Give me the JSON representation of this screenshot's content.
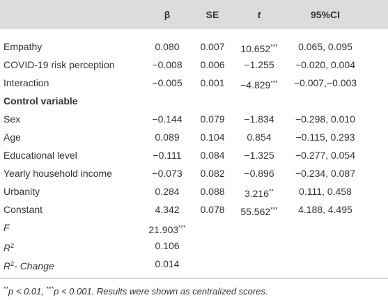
{
  "table": {
    "header": [
      "β",
      "SE",
      [
        {
          "t": "t",
          "i": true
        }
      ],
      "95%CI"
    ],
    "rows": [
      {
        "label": "Empathy",
        "cells": [
          "0.080",
          "0.007",
          [
            {
              "t": "10.652"
            },
            {
              "t": "***",
              "sup": true
            }
          ],
          "0.065, 0.095"
        ]
      },
      {
        "label": "COVID-19 risk perception",
        "cells": [
          "−0.008",
          "0.006",
          "−1.255",
          "−0.020, 0.004"
        ]
      },
      {
        "label": "Interaction",
        "cells": [
          "−0.005",
          "0.001",
          [
            {
              "t": "−4.829"
            },
            {
              "t": "***",
              "sup": true
            }
          ],
          "−0.007,−0.003"
        ]
      },
      {
        "label": "Control variable",
        "bold": true
      },
      {
        "label": "Sex",
        "cells": [
          "−0.144",
          "0.079",
          "−1.834",
          "−0.298, 0.010"
        ]
      },
      {
        "label": "Age",
        "cells": [
          "0.089",
          "0.104",
          "0.854",
          "−0.115, 0.293"
        ]
      },
      {
        "label": "Educational level",
        "cells": [
          "−0.111",
          "0.084",
          "−1.325",
          "−0.277, 0.054"
        ]
      },
      {
        "label": "Yearly household income",
        "cells": [
          "−0.073",
          "0.082",
          "−0.896",
          "−0.234, 0.087"
        ]
      },
      {
        "label": "Urbanity",
        "cells": [
          "0.284",
          "0.088",
          [
            {
              "t": "3.216"
            },
            {
              "t": "**",
              "sup": true
            }
          ],
          "0.111, 0.458"
        ]
      },
      {
        "label": "Constant",
        "cells": [
          "4.342",
          "0.078",
          [
            {
              "t": "55.562"
            },
            {
              "t": "***",
              "sup": true
            }
          ],
          "4.188, 4.495"
        ]
      },
      {
        "label": [
          {
            "t": "F",
            "i": true
          }
        ],
        "cells": [
          [
            {
              "t": "21.903"
            },
            {
              "t": "***",
              "sup": true
            }
          ]
        ]
      },
      {
        "label": [
          {
            "t": "R",
            "i": true
          },
          {
            "t": "2",
            "sup": true
          }
        ],
        "cells": [
          "0.106"
        ]
      },
      {
        "label": [
          {
            "t": "R",
            "i": true
          },
          {
            "t": "2",
            "sup": true
          },
          {
            "t": "- Change",
            "i": true
          }
        ],
        "cells": [
          "0.014"
        ]
      }
    ],
    "footnote": [
      {
        "t": "**",
        "sup": true
      },
      {
        "t": "p",
        "i": true
      },
      {
        "t": " < 0.01, ",
        "i": true
      },
      {
        "t": "***",
        "sup": true
      },
      {
        "t": "p",
        "i": true
      },
      {
        "t": " < 0.001. Results were shown as centralized scores.",
        "i": true
      }
    ]
  }
}
